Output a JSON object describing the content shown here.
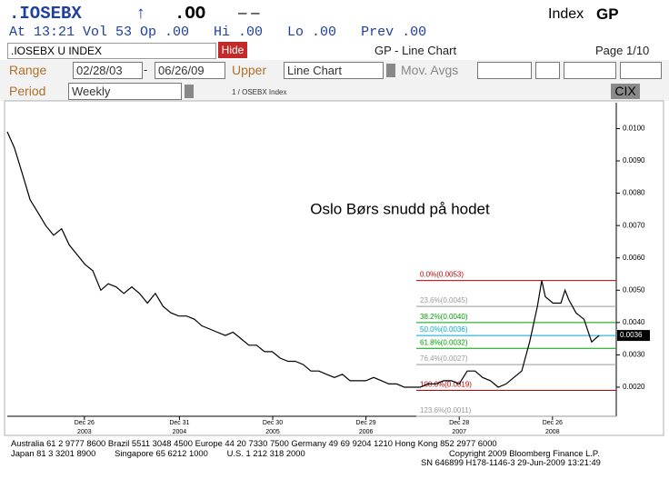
{
  "header": {
    "ticker": ".IOSEBX",
    "arrow": "↑",
    "price": ".OO",
    "change": "– –",
    "index_label": "Index",
    "function": "GP",
    "quote": "At 13:21 Vol 53 Op .00   Hi .00   Lo .00   Prev .00"
  },
  "toolbar": {
    "security": ".IOSEBX U INDEX",
    "hide": "Hide",
    "title": "GP - Line Chart",
    "page": "Page 1/10"
  },
  "controls": {
    "range_label": "Range",
    "range_start": "02/28/03",
    "range_sep": "-",
    "range_end": "06/26/09",
    "upper_label": "Upper",
    "upper_value": "Line Chart",
    "mov_avgs_label": "Mov. Avgs",
    "period_label": "Period",
    "period_value": "Weekly",
    "chart_label": "1 / OSEBX Index",
    "cix": "CIX"
  },
  "chart_data": {
    "type": "line",
    "annotation": "Oslo Børs snudd på hodet",
    "color": "#000000",
    "x": [
      "2003-02-28",
      "2003-03-28",
      "2003-04-28",
      "2003-05-28",
      "2003-06-28",
      "2003-07-28",
      "2003-08-28",
      "2003-09-28",
      "2003-10-28",
      "2003-11-28",
      "2003-12-28",
      "2004-01-28",
      "2004-02-28",
      "2004-03-28",
      "2004-04-28",
      "2004-05-28",
      "2004-06-28",
      "2004-07-28",
      "2004-08-28",
      "2004-09-28",
      "2004-10-28",
      "2004-11-28",
      "2004-12-28",
      "2005-01-28",
      "2005-02-28",
      "2005-03-28",
      "2005-04-28",
      "2005-05-28",
      "2005-06-28",
      "2005-07-28",
      "2005-08-28",
      "2005-09-28",
      "2005-10-28",
      "2005-11-28",
      "2005-12-28",
      "2006-01-28",
      "2006-02-28",
      "2006-03-28",
      "2006-04-28",
      "2006-05-28",
      "2006-06-28",
      "2006-07-28",
      "2006-08-28",
      "2006-09-28",
      "2006-10-28",
      "2006-11-28",
      "2006-12-28",
      "2007-01-28",
      "2007-02-28",
      "2007-03-28",
      "2007-04-28",
      "2007-05-28",
      "2007-06-28",
      "2007-07-28",
      "2007-08-28",
      "2007-09-28",
      "2007-10-28",
      "2007-11-28",
      "2007-12-28",
      "2008-01-28",
      "2008-02-28",
      "2008-03-28",
      "2008-04-28",
      "2008-05-28",
      "2008-06-28",
      "2008-07-28",
      "2008-08-28",
      "2008-09-28",
      "2008-10-28",
      "2008-11-14",
      "2008-11-28",
      "2008-12-28",
      "2009-01-28",
      "2009-02-13",
      "2009-02-28",
      "2009-03-28",
      "2009-04-28",
      "2009-05-28",
      "2009-06-26"
    ],
    "values": [
      0.0099,
      0.0094,
      0.0086,
      0.0078,
      0.0074,
      0.007,
      0.0067,
      0.0069,
      0.0064,
      0.0061,
      0.0058,
      0.0056,
      0.005,
      0.0052,
      0.0051,
      0.0049,
      0.0051,
      0.0049,
      0.0046,
      0.0049,
      0.0045,
      0.0043,
      0.0042,
      0.0042,
      0.0041,
      0.0039,
      0.0038,
      0.0037,
      0.0036,
      0.0037,
      0.0035,
      0.0033,
      0.0033,
      0.0031,
      0.0031,
      0.0029,
      0.0028,
      0.0028,
      0.0027,
      0.0025,
      0.0025,
      0.0024,
      0.0023,
      0.0024,
      0.0022,
      0.0022,
      0.0022,
      0.0023,
      0.0022,
      0.0021,
      0.0021,
      0.002,
      0.002,
      0.002,
      0.0021,
      0.0021,
      0.0022,
      0.0022,
      0.0021,
      0.0025,
      0.0025,
      0.0023,
      0.0022,
      0.002,
      0.0021,
      0.0023,
      0.0025,
      0.0034,
      0.0045,
      0.0053,
      0.0048,
      0.0046,
      0.0046,
      0.005,
      0.0047,
      0.0043,
      0.0041,
      0.0034,
      0.0036
    ],
    "xlim": [
      "2003-02-28",
      "2009-09-01"
    ],
    "xticks": [
      {
        "value": "2003-12-26",
        "label": "Dec 26"
      },
      {
        "value": "2004-12-31",
        "label": "Dec 31"
      },
      {
        "value": "2005-12-30",
        "label": "Dec 30"
      },
      {
        "value": "2006-12-29",
        "label": "Dec 29"
      },
      {
        "value": "2007-12-28",
        "label": "Dec 28"
      },
      {
        "value": "2008-12-26",
        "label": "Dec 26"
      }
    ],
    "xtick_years": [
      "2003",
      "2004",
      "2005",
      "2006",
      "2007",
      "2008"
    ],
    "ylim": [
      0.0011,
      0.0108
    ],
    "yticks": [
      {
        "value": 0.002,
        "label": "0.0020"
      },
      {
        "value": 0.003,
        "label": "0.0030"
      },
      {
        "value": 0.004,
        "label": "0.0040"
      },
      {
        "value": 0.005,
        "label": "0.0050"
      },
      {
        "value": 0.006,
        "label": "0.0060"
      },
      {
        "value": 0.007,
        "label": "0.0070"
      },
      {
        "value": 0.008,
        "label": "0.0080"
      },
      {
        "value": 0.009,
        "label": "0.0090"
      },
      {
        "value": 0.01,
        "label": "0.0100"
      }
    ],
    "last_value": {
      "value": 0.0036,
      "label": "0.0036"
    },
    "fib_levels": [
      {
        "value": 0.0053,
        "label": "0.0%(0.0053)",
        "color": "#c00000"
      },
      {
        "value": 0.0045,
        "label": "23.6%(0.0045)",
        "color": "#9a9a9a"
      },
      {
        "value": 0.004,
        "label": "38.2%(0.0040)",
        "color": "#00a000"
      },
      {
        "value": 0.0036,
        "label": "50.0%(0.0036)",
        "color": "#00a8d0"
      },
      {
        "value": 0.0032,
        "label": "61.8%(0.0032)",
        "color": "#00a000"
      },
      {
        "value": 0.0027,
        "label": "76.4%(0.0027)",
        "color": "#9a9a9a"
      },
      {
        "value": 0.0019,
        "label": "100.0%(0.0019)",
        "color": "#c00000"
      },
      {
        "value": 0.0011,
        "label": "123.6%(0.0011)",
        "color": "#9a9a9a"
      }
    ]
  },
  "footer": {
    "contacts_1": "Australia 61 2 9777 8600 Brazil 5511 3048 4500 Europe 44 20 7330 7500 Germany 49 69 9204 1210 Hong Kong 852 2977 6000",
    "contacts_2": "Japan 81 3 3201 8900        Singapore 65 6212 1000        U.S. 1 212 318 2000",
    "copyright": "Copyright 2009 Bloomberg Finance L.P.",
    "serial": "SN 646899 H178-1146-3 29-Jun-2009 13:21:49"
  }
}
